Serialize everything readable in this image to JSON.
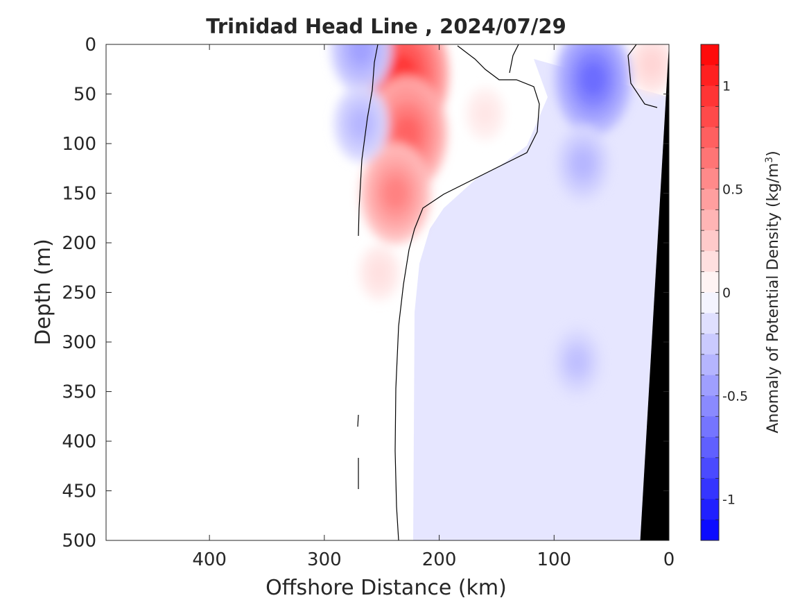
{
  "chart_data": {
    "type": "heatmap",
    "title": "Trinidad Head Line , 2024/07/29",
    "xlabel": "Offshore Distance (km)",
    "ylabel": "Depth (m)",
    "colorbar_label": "Anomaly of Potential Density (kg/m",
    "colorbar_label_superscript": "3",
    "colorbar_label_suffix": ")",
    "xlim": [
      490,
      0
    ],
    "ylim": [
      0,
      500
    ],
    "x_reversed": true,
    "y_reversed": true,
    "x_ticks": [
      400,
      300,
      200,
      100,
      0
    ],
    "x_tick_labels": [
      "400",
      "300",
      "200",
      "100",
      "0"
    ],
    "y_ticks": [
      0,
      50,
      100,
      150,
      200,
      250,
      300,
      350,
      400,
      450,
      500
    ],
    "y_tick_labels": [
      "0",
      "50",
      "100",
      "150",
      "200",
      "250",
      "300",
      "350",
      "400",
      "450",
      "500"
    ],
    "clim": [
      -1.2,
      1.2
    ],
    "colorbar_ticks": [
      1,
      0.5,
      0,
      -0.5,
      -1
    ],
    "colorbar_tick_labels": [
      "1",
      "0.5",
      "0",
      "-0.5",
      "-1"
    ],
    "colorbar_levels": 24,
    "colors": {
      "positive_max": "#ff0000",
      "neutral": "#ffffff",
      "negative_max": "#0000ff",
      "bathymetry": "#000000",
      "contour_line": "#000000"
    },
    "anomaly_features": [
      {
        "name": "surface warm-side positive core",
        "x": 232,
        "depth": 30,
        "value": 0.95
      },
      {
        "name": "positive core extension",
        "x": 228,
        "depth": 90,
        "value": 0.75
      },
      {
        "name": "positive core lower lobe",
        "x": 238,
        "depth": 150,
        "value": 0.6
      },
      {
        "name": "deep positive tail",
        "x": 252,
        "depth": 230,
        "value": 0.15
      },
      {
        "name": "positive shelf patch",
        "x": 160,
        "depth": 70,
        "value": 0.12
      },
      {
        "name": "nearshore surface positive",
        "x": 15,
        "depth": 20,
        "value": 0.2
      },
      {
        "name": "offshore surface negative",
        "x": 268,
        "depth": 5,
        "value": -0.45
      },
      {
        "name": "offshore negative patch",
        "x": 268,
        "depth": 80,
        "value": -0.35
      },
      {
        "name": "mid-shelf negative core",
        "x": 66,
        "depth": 35,
        "value": -0.7
      },
      {
        "name": "negative column",
        "x": 75,
        "depth": 120,
        "value": -0.35
      },
      {
        "name": "deep negative patch",
        "x": 80,
        "depth": 320,
        "value": -0.3
      }
    ],
    "bathymetry": {
      "description": "seafloor wedge near coast",
      "surface_x": 0,
      "bottom_x": 25,
      "bottom_depth": 500
    }
  }
}
